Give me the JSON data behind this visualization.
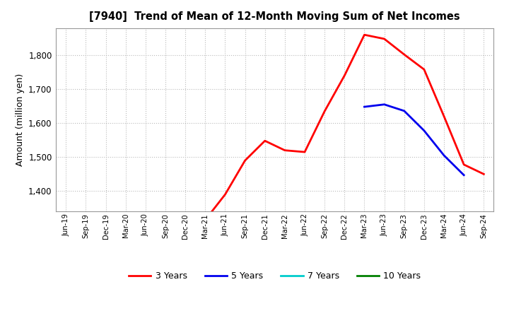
{
  "title": "[7940]  Trend of Mean of 12-Month Moving Sum of Net Incomes",
  "ylabel": "Amount (million yen)",
  "ylim": [
    1340,
    1880
  ],
  "yticks": [
    1400,
    1500,
    1600,
    1700,
    1800
  ],
  "background_color": "#ffffff",
  "grid_color": "#bbbbbb",
  "series": {
    "3 Years": {
      "color": "#ff0000",
      "x": [
        "Mar-21",
        "Jun-21",
        "Sep-21",
        "Dec-21",
        "Mar-22",
        "Jun-22",
        "Sep-22",
        "Dec-22",
        "Mar-23",
        "Jun-23",
        "Sep-23",
        "Dec-23",
        "Mar-24",
        "Jun-24",
        "Sep-24"
      ],
      "y": [
        1315,
        1390,
        1490,
        1548,
        1520,
        1515,
        1635,
        1740,
        1860,
        1848,
        1802,
        1758,
        1620,
        1478,
        1450
      ]
    },
    "5 Years": {
      "color": "#0000ee",
      "x": [
        "Mar-23",
        "Jun-23",
        "Sep-23",
        "Dec-23",
        "Mar-24",
        "Jun-24"
      ],
      "y": [
        1648,
        1655,
        1636,
        1578,
        1505,
        1447
      ]
    },
    "7 Years": {
      "color": "#00cccc",
      "x": [],
      "y": []
    },
    "10 Years": {
      "color": "#008000",
      "x": [],
      "y": []
    }
  },
  "xtick_labels": [
    "Jun-19",
    "Sep-19",
    "Dec-19",
    "Mar-20",
    "Jun-20",
    "Sep-20",
    "Dec-20",
    "Mar-21",
    "Jun-21",
    "Sep-21",
    "Dec-21",
    "Mar-22",
    "Jun-22",
    "Sep-22",
    "Dec-22",
    "Mar-23",
    "Jun-23",
    "Sep-23",
    "Dec-23",
    "Mar-24",
    "Jun-24",
    "Sep-24"
  ],
  "legend_order": [
    "3 Years",
    "5 Years",
    "7 Years",
    "10 Years"
  ]
}
